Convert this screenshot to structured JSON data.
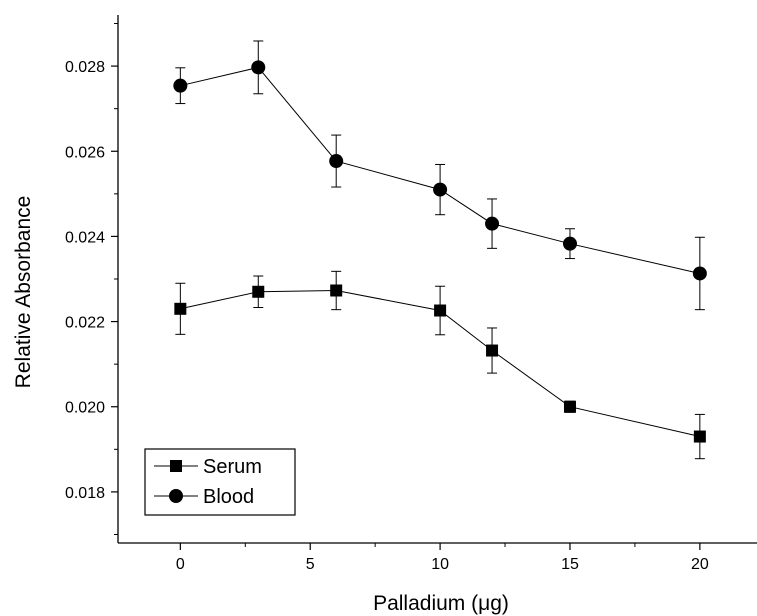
{
  "chart_data": {
    "type": "line",
    "title": "",
    "xlabel": "Palladium (μg)",
    "ylabel": "Relative Absorbance",
    "xlim": [
      -2.4,
      22.2
    ],
    "ylim": [
      0.0168,
      0.0292
    ],
    "x_ticks": [
      0,
      5,
      10,
      15,
      20
    ],
    "x_tick_labels": [
      "0",
      "5",
      "10",
      "15",
      "20"
    ],
    "y_ticks": [
      0.018,
      0.02,
      0.022,
      0.024,
      0.026,
      0.028
    ],
    "y_tick_labels": [
      "0.018",
      "0.020",
      "0.022",
      "0.024",
      "0.026",
      "0.028"
    ],
    "legend_position": "bottom-left",
    "grid": false,
    "x": [
      0,
      3,
      6,
      10,
      12,
      15,
      20
    ],
    "series": [
      {
        "name": "Serum",
        "marker": "square",
        "color": "#000000",
        "values": [
          0.0223,
          0.0227,
          0.02273,
          0.02226,
          0.02132,
          0.02,
          0.0193
        ],
        "errors": [
          0.0006,
          0.00037,
          0.00045,
          0.00057,
          0.00053,
          0.00013,
          0.00052
        ]
      },
      {
        "name": "Blood",
        "marker": "circle",
        "color": "#000000",
        "values": [
          0.02754,
          0.02797,
          0.02577,
          0.0251,
          0.0243,
          0.02383,
          0.02313
        ],
        "errors": [
          0.00042,
          0.00062,
          0.00061,
          0.00059,
          0.00058,
          0.00035,
          0.00085
        ]
      }
    ]
  }
}
